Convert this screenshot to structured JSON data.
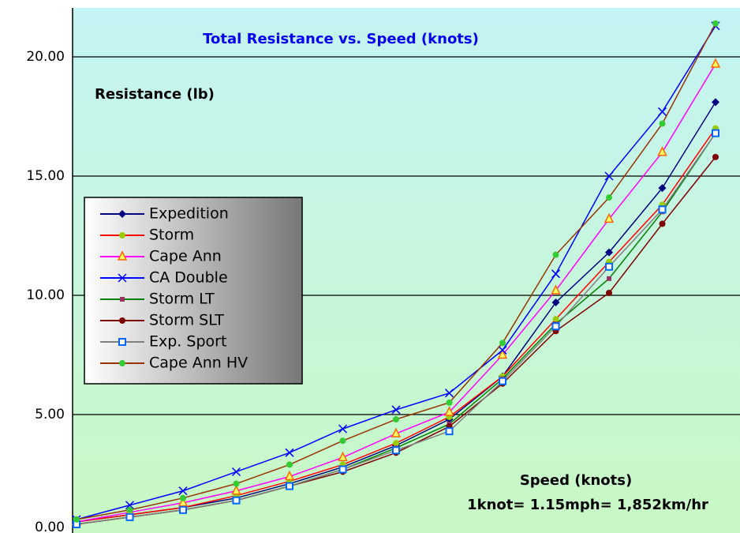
{
  "chart_data": {
    "type": "line",
    "title": "Total Resistance vs. Speed (knots)",
    "y_label": "Resistance (lb)",
    "x_label": "Speed (knots)",
    "annotation": "1knot= 1.15mph= 1,852km/hr",
    "categories": [
      null,
      null,
      null,
      null,
      null,
      null,
      null,
      null,
      null,
      null,
      null,
      null,
      null
    ],
    "ylim": [
      0,
      22
    ],
    "yticks": [
      {
        "value": 0,
        "label": "0.00"
      },
      {
        "value": 5,
        "label": "5.00"
      },
      {
        "value": 10,
        "label": "10.00"
      },
      {
        "value": 15,
        "label": "15.00"
      },
      {
        "value": 20,
        "label": "20.00"
      }
    ],
    "grid": true,
    "legend": "left",
    "series": [
      {
        "name": "Expedition",
        "color": "#000080",
        "marker": "diamond",
        "marker_color": "#000080",
        "values": [
          0.5,
          0.8,
          1.1,
          1.5,
          2.1,
          2.8,
          3.7,
          4.8,
          6.6,
          9.7,
          11.8,
          14.5,
          18.1
        ]
      },
      {
        "name": "Storm",
        "color": "#ff0000",
        "marker": "circle",
        "marker_color": "#99cc00",
        "values": [
          0.5,
          0.8,
          1.1,
          1.6,
          2.2,
          2.9,
          3.8,
          4.9,
          6.6,
          9.0,
          11.4,
          13.8,
          17.0
        ]
      },
      {
        "name": "Cape Ann",
        "color": "#ff00ff",
        "marker": "triangle",
        "marker_color": "#ff6600",
        "values": [
          0.5,
          0.9,
          1.3,
          1.8,
          2.4,
          3.2,
          4.2,
          5.1,
          7.5,
          10.2,
          13.2,
          16.0,
          19.7
        ]
      },
      {
        "name": "CA Double",
        "color": "#0000ff",
        "marker": "x",
        "marker_color": "#0000ff",
        "values": [
          0.6,
          1.2,
          1.8,
          2.6,
          3.4,
          4.4,
          5.2,
          5.9,
          7.7,
          10.9,
          15.0,
          17.7,
          21.3
        ]
      },
      {
        "name": "Storm LT",
        "color": "#008000",
        "marker": "square",
        "marker_color": "#993366",
        "values": [
          0.4,
          0.7,
          1.0,
          1.4,
          2.0,
          2.7,
          3.6,
          4.6,
          6.5,
          8.8,
          10.7,
          13.5,
          16.8
        ]
      },
      {
        "name": "Storm SLT",
        "color": "#800000",
        "marker": "circle",
        "marker_color": "#800000",
        "values": [
          0.4,
          0.7,
          1.0,
          1.4,
          2.0,
          2.6,
          3.4,
          4.5,
          6.3,
          8.5,
          10.1,
          13.0,
          15.8
        ]
      },
      {
        "name": "Exp. Sport",
        "color": "#808080",
        "marker": "hollow-square",
        "marker_color": "#0066ff",
        "values": [
          0.4,
          0.7,
          1.0,
          1.4,
          2.0,
          2.7,
          3.5,
          4.3,
          6.4,
          8.7,
          11.2,
          13.6,
          16.8
        ]
      },
      {
        "name": "Cape Ann HV",
        "color": "#993300",
        "marker": "circle",
        "marker_color": "#33cc33",
        "values": [
          0.6,
          1.0,
          1.5,
          2.1,
          2.9,
          3.9,
          4.8,
          5.5,
          8.0,
          11.7,
          14.1,
          17.2,
          21.4
        ]
      }
    ]
  }
}
